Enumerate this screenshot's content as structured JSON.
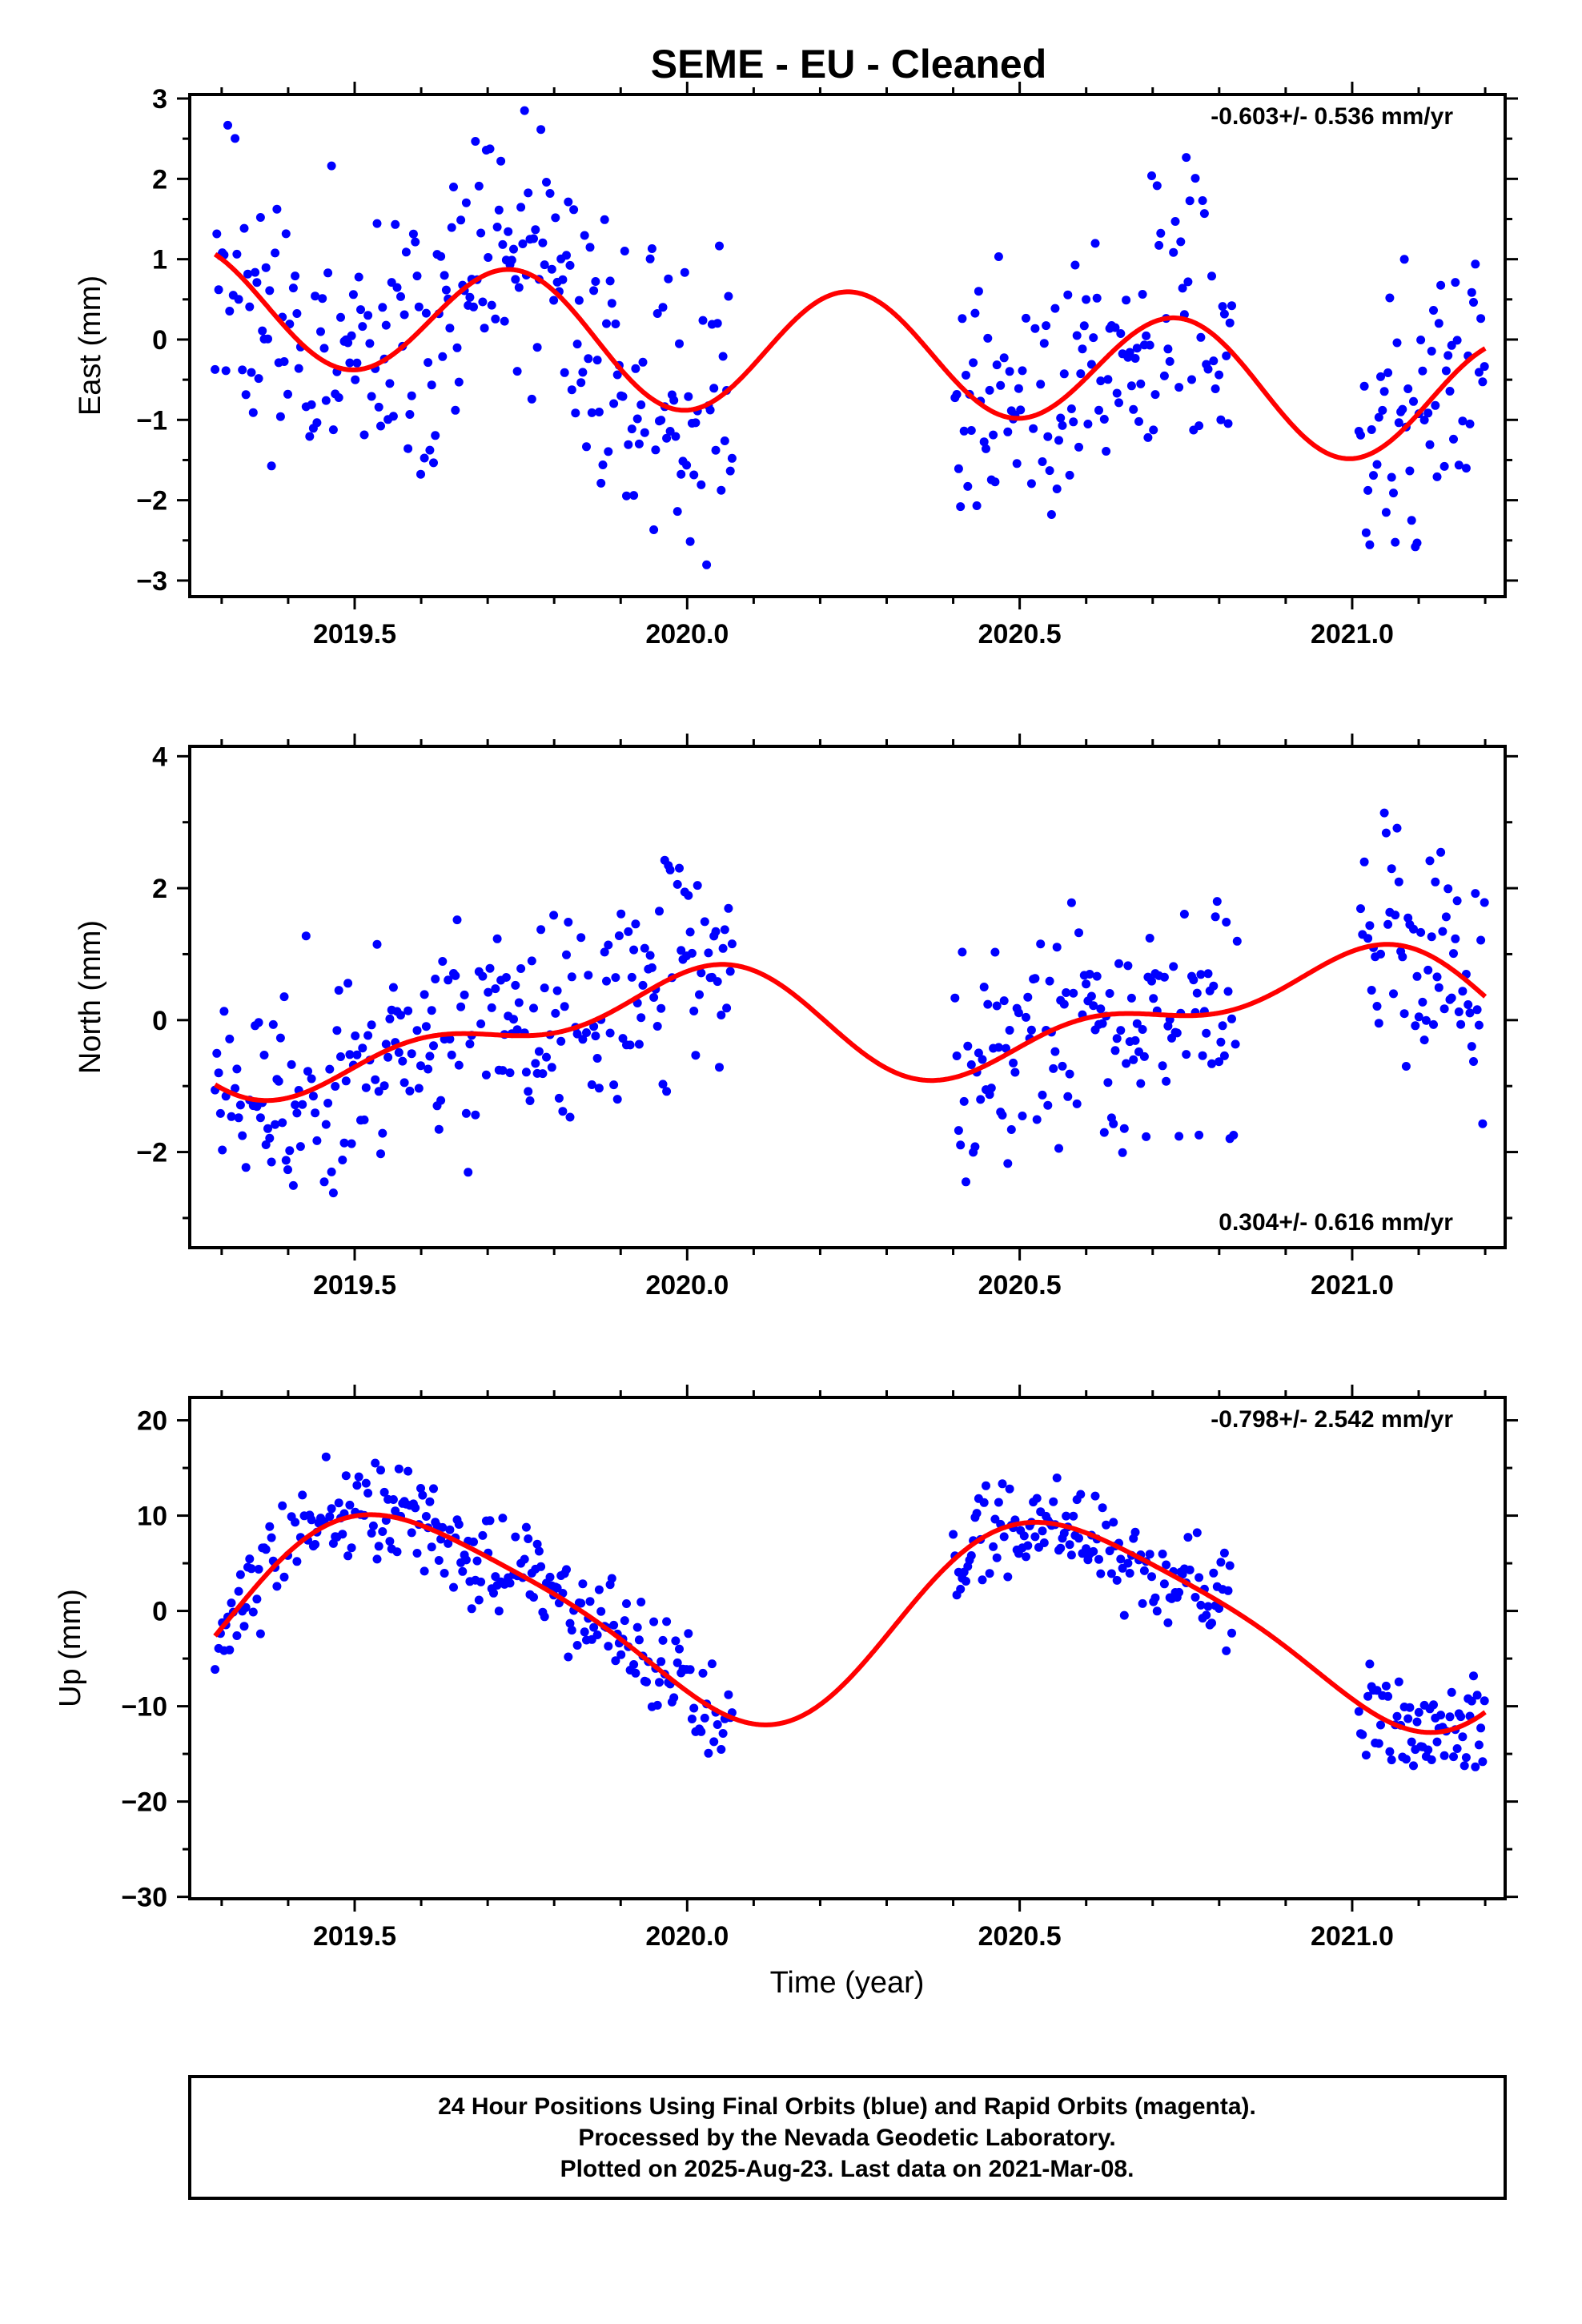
{
  "title": "SEME  - EU - Cleaned",
  "xlabel": "Time (year)",
  "colors": {
    "final_orbits": "#0000ff",
    "model_curve": "#ff0000",
    "axis": "#000000"
  },
  "footer": {
    "line1": "24 Hour Positions Using Final Orbits (blue) and Rapid Orbits (magenta).",
    "line2": "Processed by the Nevada Geodetic Laboratory.",
    "line3": "Plotted on 2025-Aug-23. Last data on 2021-Mar-08."
  },
  "chart_data": [
    {
      "type": "scatter",
      "ylabel": "East (mm)",
      "rate": "-0.603+/- 0.536 mm/yr",
      "rate_position": "top-right",
      "xlim": [
        2019.252,
        2021.23
      ],
      "ylim": [
        -3.2,
        3.05
      ],
      "xticks": [
        "2019.5",
        "2020.0",
        "2020.5",
        "2021.0"
      ],
      "yticks": [
        3,
        2,
        1,
        0,
        -1,
        -2,
        -3
      ],
      "ytick_labels": [
        "3",
        "2",
        "1",
        "0",
        "−1",
        "−2",
        "−3"
      ],
      "grid": false,
      "segments": [
        [
          2019.29,
          2020.07
        ],
        [
          2020.4,
          2020.82
        ],
        [
          2021.01,
          2021.2
        ]
      ],
      "points_per_day": 1,
      "model": {
        "trend": -0.603,
        "ann_sin": 0.02,
        "ann_cos": -0.1,
        "semi_sin": 0.08,
        "semi_cos": -0.75,
        "offset": -0.15
      },
      "noise_sd": 0.9,
      "seed": 11
    },
    {
      "type": "scatter",
      "ylabel": "North (mm)",
      "rate": "0.304+/- 0.616 mm/yr",
      "rate_position": "bottom-right",
      "xlim": [
        2019.252,
        2021.23
      ],
      "ylim": [
        -3.45,
        4.15
      ],
      "xticks": [
        "2019.5",
        "2020.0",
        "2020.5",
        "2021.0"
      ],
      "yticks": [
        4,
        2,
        0,
        -2
      ],
      "ytick_labels": [
        "4",
        "2",
        "0",
        "−2"
      ],
      "grid": false,
      "segments": [
        [
          2019.29,
          2020.07
        ],
        [
          2020.4,
          2020.83
        ],
        [
          2021.01,
          2021.2
        ]
      ],
      "points_per_day": 1,
      "model": {
        "trend": 0.304,
        "ann_sin": -0.15,
        "ann_cos": 0.65,
        "semi_sin": 0.35,
        "semi_cos": 0.2,
        "offset": -0.05
      },
      "noise_sd": 0.85,
      "seed": 23
    },
    {
      "type": "scatter",
      "ylabel": "Up (mm)",
      "rate": "-0.798+/- 2.542 mm/yr",
      "rate_position": "top-right",
      "xlim": [
        2019.252,
        2021.23
      ],
      "ylim": [
        -30.2,
        22.4
      ],
      "xticks": [
        "2019.5",
        "2020.0",
        "2020.5",
        "2021.0"
      ],
      "yticks": [
        20,
        10,
        0,
        -10,
        -20,
        -30
      ],
      "ytick_labels": [
        "20",
        "10",
        "0",
        "−10",
        "−20",
        "−30"
      ],
      "grid": false,
      "segments": [
        [
          2019.29,
          2020.07
        ],
        [
          2020.4,
          2020.82
        ],
        [
          2021.01,
          2021.2
        ]
      ],
      "points_per_day": 1,
      "model": {
        "trend": -0.798,
        "ann_sin": -5.0,
        "ann_cos": -9.0,
        "semi_sin": -1.5,
        "semi_cos": 1.0,
        "offset": -0.6
      },
      "noise_sd": 2.6,
      "seed": 37
    }
  ]
}
